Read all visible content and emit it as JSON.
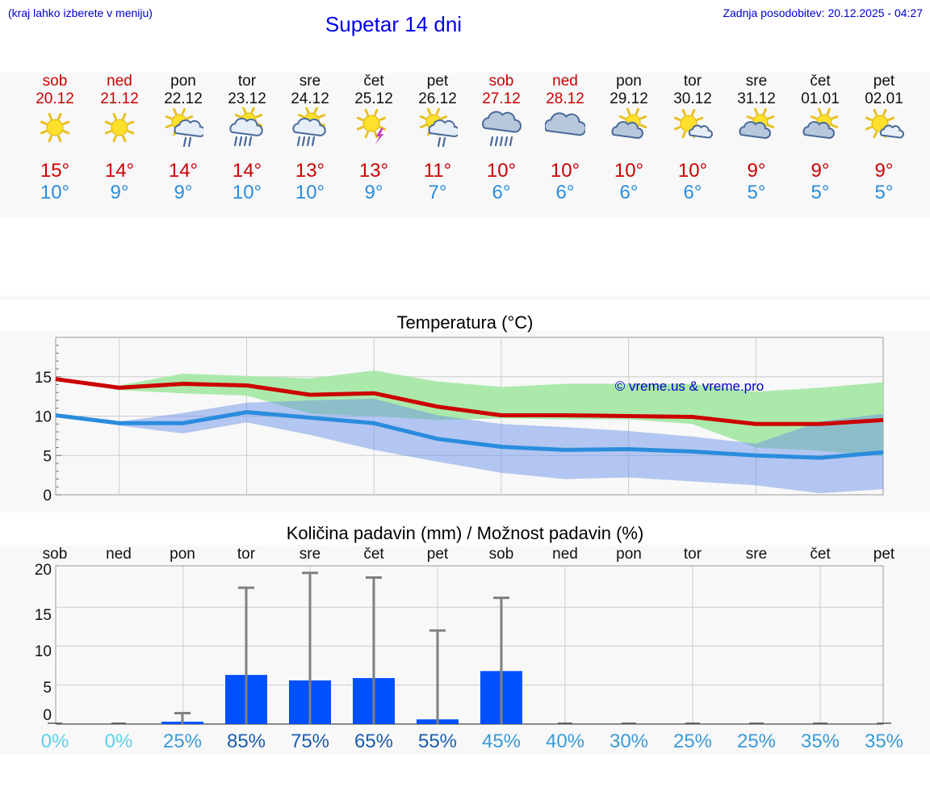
{
  "header": {
    "hint": "(kraj lahko izberete v meniju)",
    "title": "Supetar 14 dni",
    "updated": "Zadnja posodobitev: 20.12.2025 - 04:27"
  },
  "colors": {
    "max_temp": "#cc0000",
    "min_temp": "#2a8cdd",
    "max_band": "#a6e8a6",
    "min_band": "#a8c2f4",
    "overlap_band": "#7cc8a8",
    "rain_bar": "#0050ff",
    "error_bar": "#808080",
    "copyright": "#0000cc"
  },
  "days": [
    {
      "name": "sob",
      "date": "20.12",
      "weekend": true,
      "icon": "sun-icon",
      "max": "15°",
      "min": "10°"
    },
    {
      "name": "ned",
      "date": "21.12",
      "weekend": true,
      "icon": "sun-icon",
      "max": "14°",
      "min": "9°"
    },
    {
      "name": "pon",
      "date": "22.12",
      "weekend": false,
      "icon": "sun-cloud-drizzle-icon",
      "max": "14°",
      "min": "9°"
    },
    {
      "name": "tor",
      "date": "23.12",
      "weekend": false,
      "icon": "sun-cloud-rain-icon",
      "max": "14°",
      "min": "10°"
    },
    {
      "name": "sre",
      "date": "24.12",
      "weekend": false,
      "icon": "sun-cloud-rain-icon",
      "max": "13°",
      "min": "10°"
    },
    {
      "name": "čet",
      "date": "25.12",
      "weekend": false,
      "icon": "sun-thunder-icon",
      "max": "13°",
      "min": "9°"
    },
    {
      "name": "pet",
      "date": "26.12",
      "weekend": false,
      "icon": "sun-cloud-drizzle-icon",
      "max": "11°",
      "min": "7°"
    },
    {
      "name": "sob",
      "date": "27.12",
      "weekend": true,
      "icon": "cloud-rain-icon",
      "max": "10°",
      "min": "6°"
    },
    {
      "name": "ned",
      "date": "28.12",
      "weekend": true,
      "icon": "cloud-icon",
      "max": "10°",
      "min": "6°"
    },
    {
      "name": "pon",
      "date": "29.12",
      "weekend": false,
      "icon": "sun-cloud-icon",
      "max": "10°",
      "min": "6°"
    },
    {
      "name": "tor",
      "date": "30.12",
      "weekend": false,
      "icon": "sun-small-cloud-icon",
      "max": "10°",
      "min": "6°"
    },
    {
      "name": "sre",
      "date": "31.12",
      "weekend": false,
      "icon": "sun-cloud-icon",
      "max": "9°",
      "min": "5°"
    },
    {
      "name": "čet",
      "date": "01.01",
      "weekend": false,
      "icon": "sun-cloud-icon",
      "max": "9°",
      "min": "5°"
    },
    {
      "name": "pet",
      "date": "02.01",
      "weekend": false,
      "icon": "sun-small-cloud-icon",
      "max": "9°",
      "min": "5°"
    }
  ],
  "chart_data": [
    {
      "type": "line",
      "title": "Temperatura (°C)",
      "categories": [
        "20.12",
        "21.12",
        "22.12",
        "23.12",
        "24.12",
        "25.12",
        "26.12",
        "27.12",
        "28.12",
        "29.12",
        "30.12",
        "31.12",
        "01.01",
        "02.01"
      ],
      "ylim": [
        0,
        20
      ],
      "yticks": [
        0,
        5,
        10,
        15
      ],
      "watermark": "© vreme.us & vreme.pro",
      "series": [
        {
          "name": "max",
          "values": [
            14.7,
            13.6,
            14.1,
            13.9,
            12.7,
            12.9,
            11.2,
            10.1,
            10.1,
            10.0,
            9.9,
            9.0,
            9.0,
            9.5
          ]
        },
        {
          "name": "min",
          "values": [
            10.1,
            9.1,
            9.1,
            10.5,
            9.8,
            9.1,
            7.1,
            6.1,
            5.7,
            5.8,
            5.5,
            5.0,
            4.7,
            5.4
          ]
        }
      ],
      "bands": [
        {
          "name": "max_range",
          "low": [
            14.7,
            13.3,
            12.9,
            12.6,
            10.3,
            10.0,
            9.5,
            9.7,
            9.6,
            9.6,
            9.0,
            6.0,
            5.6,
            4.9
          ],
          "high": [
            14.7,
            13.9,
            15.4,
            15.1,
            14.8,
            15.8,
            14.4,
            13.7,
            14.1,
            14.1,
            14.1,
            13.1,
            13.6,
            14.3
          ]
        },
        {
          "name": "min_range",
          "low": [
            10.1,
            8.8,
            7.8,
            9.2,
            7.6,
            5.7,
            4.2,
            2.8,
            2.0,
            2.2,
            1.7,
            1.2,
            0.2,
            0.7
          ],
          "high": [
            10.1,
            9.3,
            10.4,
            11.7,
            12.0,
            12.2,
            10.1,
            9.0,
            8.6,
            8.1,
            7.4,
            6.5,
            9.3,
            10.3
          ]
        }
      ]
    },
    {
      "type": "bar",
      "title": "Količina padavin (mm) / Možnost padavin (%)",
      "categories": [
        "sob",
        "ned",
        "pon",
        "tor",
        "sre",
        "čet",
        "pet",
        "sob",
        "ned",
        "pon",
        "tor",
        "sre",
        "čet",
        "pet"
      ],
      "ylim": [
        0,
        20
      ],
      "ytick_labels": [
        "0",
        "5",
        "10",
        "15",
        "20"
      ],
      "values": [
        0,
        0,
        0.3,
        6.3,
        5.6,
        5.9,
        0.6,
        6.8,
        0,
        0,
        0,
        0,
        0,
        0
      ],
      "upper": [
        0,
        0,
        1.4,
        17.5,
        19.4,
        18.8,
        12.0,
        16.2,
        0,
        0,
        0,
        0,
        0,
        0
      ],
      "probability_labels": [
        "0%",
        "0%",
        "25%",
        "85%",
        "75%",
        "65%",
        "55%",
        "45%",
        "40%",
        "30%",
        "25%",
        "25%",
        "35%",
        "35%"
      ],
      "probability_colors": [
        "#5ad4e8",
        "#5ad4e8",
        "#3a9ad6",
        "#1a5cb0",
        "#1a5cb0",
        "#1a5cb0",
        "#1a5cb0",
        "#3a9ad6",
        "#3a9ad6",
        "#3a9ad6",
        "#3a9ad6",
        "#3a9ad6",
        "#3a9ad6",
        "#3a9ad6"
      ]
    }
  ]
}
